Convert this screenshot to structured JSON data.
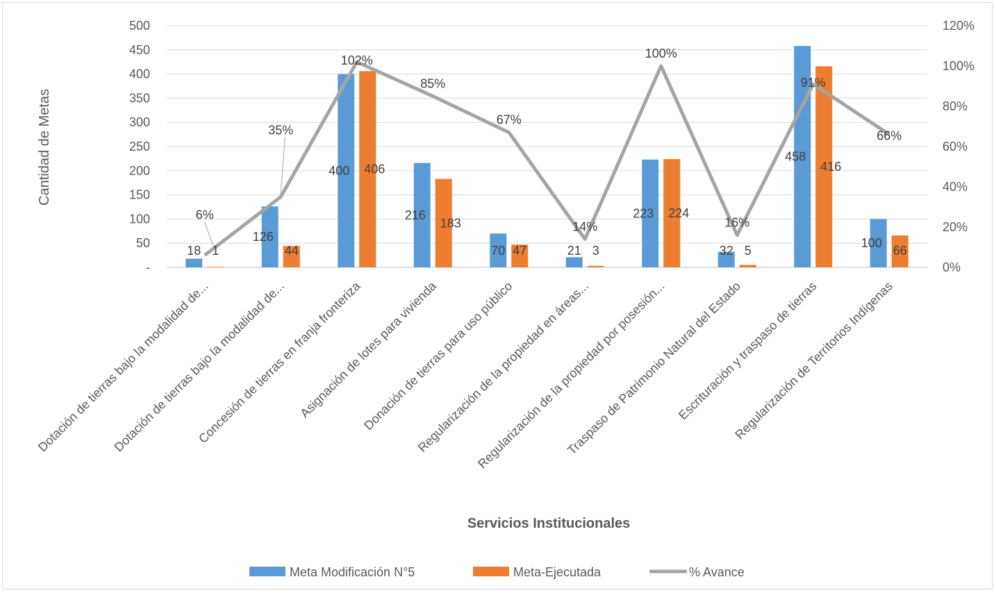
{
  "chart_data": {
    "type": "bar",
    "xlabel": "Servicios Institucionales",
    "ylabel": "Cantidad de Metas",
    "ylim": [
      0,
      500
    ],
    "y2lim": [
      0,
      1.2
    ],
    "yticks": [
      "-",
      "50",
      "100",
      "150",
      "200",
      "250",
      "300",
      "350",
      "400",
      "450",
      "500"
    ],
    "y2ticks": [
      "0%",
      "20%",
      "40%",
      "60%",
      "80%",
      "100%",
      "120%"
    ],
    "categories": [
      "Dotación de tierras bajo la modalidad de...",
      "Dotación de tierras bajo la modalidad de...",
      "Concesión de tierras en franja fronteriza",
      "Asignación de lotes para vivienda",
      "Donación de tierras para uso público",
      "Regularización de la propiedad en áreas...",
      "Regularización de la propiedad por posesión...",
      "Traspaso de Patrimonio Natural del Estado",
      "Escrituración y traspaso de tierras",
      "Regularización de Territorios Indígenas"
    ],
    "series": [
      {
        "name": "Meta Modificación N°5",
        "type": "bar",
        "color": "#5b9bd5",
        "values": [
          18,
          126,
          400,
          216,
          70,
          21,
          223,
          32,
          458,
          100
        ],
        "labels": [
          "18",
          "126",
          "400",
          "216",
          "70",
          "21",
          "223",
          "32",
          "458",
          "100"
        ]
      },
      {
        "name": "Meta-Ejecutada",
        "type": "bar",
        "color": "#ed7d31",
        "values": [
          1,
          44,
          406,
          183,
          47,
          3,
          224,
          5,
          416,
          66
        ],
        "labels": [
          "1",
          "44",
          "406",
          "183",
          "47",
          "3",
          "224",
          "5",
          "416",
          "66"
        ]
      },
      {
        "name": "% Avance",
        "type": "line",
        "axis": "secondary",
        "color": "#a5a5a5",
        "values": [
          0.06,
          0.35,
          1.02,
          0.85,
          0.67,
          0.14,
          1.0,
          0.16,
          0.91,
          0.66
        ],
        "labels": [
          "6%",
          "35%",
          "102%",
          "85%",
          "67%",
          "14%",
          "100%",
          "16%",
          "91%",
          "66%"
        ]
      }
    ],
    "grid": true,
    "legend": "bottom"
  }
}
